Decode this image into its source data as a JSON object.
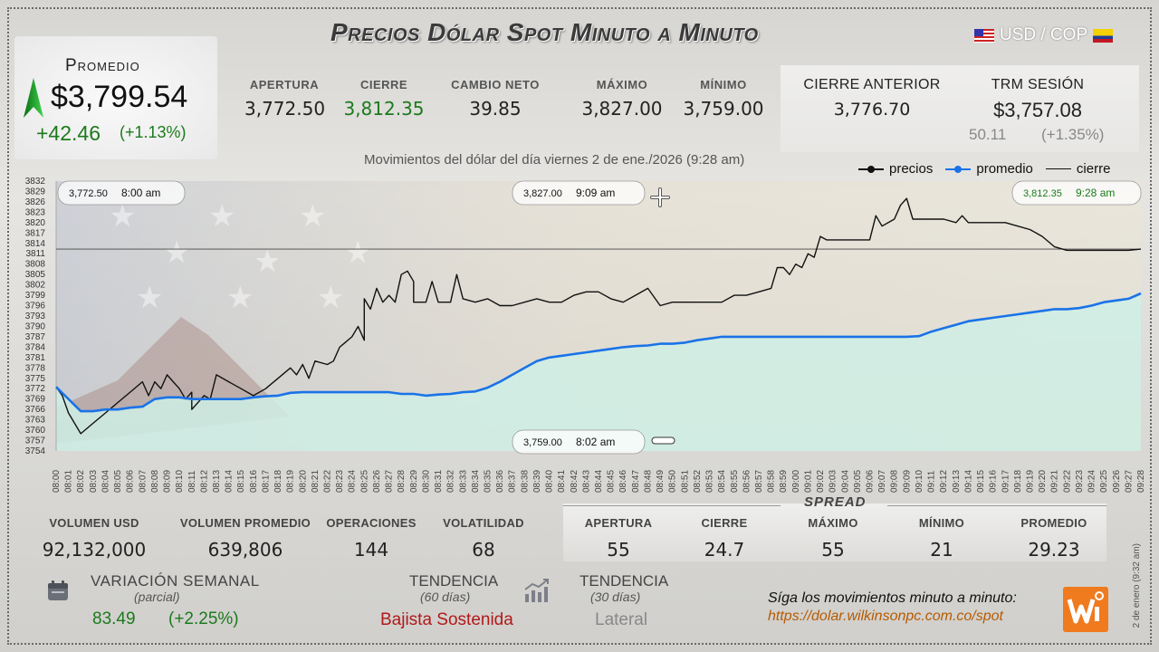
{
  "header": {
    "title": "Precios Dólar Spot Minuto a Minuto",
    "currency_pair": "USD / COP"
  },
  "average": {
    "label": "Promedio",
    "value": "$3,799.54",
    "change": "+42.46",
    "change_pct": "(+1.13%)"
  },
  "stats": {
    "apertura_label": "APERTURA",
    "apertura": "3,772.50",
    "cierre_label": "CIERRE",
    "cierre": "3,812.35",
    "cambio_label": "CAMBIO NETO",
    "cambio": "39.85",
    "maximo_label": "MÁXIMO",
    "maximo": "3,827.00",
    "minimo_label": "MÍNIMO",
    "minimo": "3,759.00"
  },
  "previous": {
    "cierre_anterior_label": "CIERRE ANTERIOR",
    "cierre_anterior": "3,776.70",
    "trm_label": "TRM SESIÓN",
    "trm": "$3,757.08",
    "trm_change": "50.11",
    "trm_pct": "(+1.35%)"
  },
  "chart_subtitle": "Movimientos del dólar del día viernes 2 de ene./2026 (9:28 am)",
  "legend": {
    "precios": "precios",
    "promedio": "promedio",
    "cierre": "cierre"
  },
  "colors": {
    "precios": "#111111",
    "promedio": "#1a73e8",
    "cierre": "#444444",
    "fill": "#cfeee5",
    "green": "#1c7a1c",
    "red": "#b11a1a"
  },
  "chart_data": {
    "type": "line",
    "ylim": [
      3754,
      3832
    ],
    "yticks": [
      3832,
      3829,
      3826,
      3823,
      3820,
      3817,
      3814,
      3811,
      3808,
      3805,
      3802,
      3799,
      3796,
      3793,
      3790,
      3787,
      3784,
      3781,
      3778,
      3775,
      3772,
      3769,
      3766,
      3763,
      3760,
      3757,
      3754
    ],
    "x_start_minute": 0,
    "x_end_minute": 88,
    "xticks": [
      "08:00",
      "08:01",
      "08:02",
      "08:03",
      "08:04",
      "08:05",
      "08:06",
      "08:07",
      "08:08",
      "08:09",
      "08:10",
      "08:11",
      "08:12",
      "08:13",
      "08:14",
      "08:15",
      "08:16",
      "08:17",
      "08:18",
      "08:19",
      "08:20",
      "08:21",
      "08:22",
      "08:23",
      "08:24",
      "08:25",
      "08:26",
      "08:27",
      "08:28",
      "08:29",
      "08:30",
      "08:31",
      "08:32",
      "08:33",
      "08:34",
      "08:35",
      "08:36",
      "08:37",
      "08:38",
      "08:39",
      "08:40",
      "08:41",
      "08:42",
      "08:43",
      "08:44",
      "08:45",
      "08:46",
      "08:47",
      "08:48",
      "08:49",
      "08:50",
      "08:51",
      "08:52",
      "08:53",
      "08:54",
      "08:55",
      "08:56",
      "08:57",
      "08:58",
      "08:59",
      "09:00",
      "09:01",
      "09:02",
      "09:03",
      "09:04",
      "09:05",
      "09:06",
      "09:07",
      "09:08",
      "09:09",
      "09:10",
      "09:11",
      "09:12",
      "09:13",
      "09:14",
      "09:15",
      "09:16",
      "09:17",
      "09:18",
      "09:19",
      "09:20",
      "09:21",
      "09:22",
      "09:23",
      "09:24",
      "09:25",
      "09:26",
      "09:27",
      "09:28"
    ],
    "cierre_line": 3812.35,
    "series": [
      {
        "name": "precios",
        "points": [
          [
            0,
            3772.5
          ],
          [
            0.5,
            3770
          ],
          [
            1,
            3765
          ],
          [
            2,
            3759
          ],
          [
            3,
            3762
          ],
          [
            4,
            3765
          ],
          [
            5,
            3768
          ],
          [
            6,
            3771
          ],
          [
            7,
            3774
          ],
          [
            7.5,
            3770
          ],
          [
            8,
            3774
          ],
          [
            8.5,
            3772
          ],
          [
            9,
            3776
          ],
          [
            9.5,
            3774
          ],
          [
            10,
            3772
          ],
          [
            10.5,
            3769
          ],
          [
            11,
            3771
          ],
          [
            11,
            3766
          ],
          [
            12,
            3770
          ],
          [
            12.5,
            3769
          ],
          [
            13,
            3776
          ],
          [
            14,
            3774
          ],
          [
            15,
            3772
          ],
          [
            16,
            3770
          ],
          [
            17,
            3772
          ],
          [
            18,
            3775
          ],
          [
            19,
            3778
          ],
          [
            19.5,
            3776
          ],
          [
            20,
            3779
          ],
          [
            20.5,
            3775
          ],
          [
            21,
            3780
          ],
          [
            22,
            3779
          ],
          [
            22.5,
            3780
          ],
          [
            23,
            3784
          ],
          [
            24,
            3787
          ],
          [
            24.5,
            3790
          ],
          [
            25,
            3786
          ],
          [
            25,
            3798
          ],
          [
            25.5,
            3795
          ],
          [
            26,
            3801
          ],
          [
            26.5,
            3797
          ],
          [
            27,
            3799
          ],
          [
            27.5,
            3797
          ],
          [
            28,
            3805
          ],
          [
            28.5,
            3806
          ],
          [
            29,
            3803
          ],
          [
            29,
            3797
          ],
          [
            30,
            3797
          ],
          [
            30.5,
            3803
          ],
          [
            31,
            3797
          ],
          [
            32,
            3797
          ],
          [
            32.5,
            3805
          ],
          [
            33,
            3798
          ],
          [
            34,
            3797
          ],
          [
            35,
            3798
          ],
          [
            36,
            3796
          ],
          [
            37,
            3796
          ],
          [
            38,
            3797
          ],
          [
            39,
            3798
          ],
          [
            40,
            3797
          ],
          [
            41,
            3797
          ],
          [
            42,
            3799
          ],
          [
            43,
            3800
          ],
          [
            44,
            3800
          ],
          [
            45,
            3798
          ],
          [
            46,
            3797
          ],
          [
            47,
            3799
          ],
          [
            48,
            3801
          ],
          [
            49,
            3796
          ],
          [
            50,
            3797
          ],
          [
            51,
            3797
          ],
          [
            52,
            3797
          ],
          [
            53,
            3797
          ],
          [
            54,
            3797
          ],
          [
            55,
            3799
          ],
          [
            56,
            3799
          ],
          [
            57,
            3800
          ],
          [
            58,
            3801
          ],
          [
            58.5,
            3807
          ],
          [
            59,
            3807
          ],
          [
            59.5,
            3805
          ],
          [
            60,
            3808
          ],
          [
            60.5,
            3807
          ],
          [
            61,
            3811
          ],
          [
            61.5,
            3810
          ],
          [
            62,
            3816
          ],
          [
            62.5,
            3815
          ],
          [
            63,
            3815
          ],
          [
            64,
            3815
          ],
          [
            65,
            3815
          ],
          [
            66,
            3815
          ],
          [
            66.5,
            3822
          ],
          [
            67,
            3819
          ],
          [
            68,
            3821
          ],
          [
            68.5,
            3825
          ],
          [
            69,
            3827
          ],
          [
            69.5,
            3821
          ],
          [
            70,
            3821
          ],
          [
            71,
            3821
          ],
          [
            72,
            3821
          ],
          [
            73,
            3820
          ],
          [
            73.5,
            3822
          ],
          [
            74,
            3820
          ],
          [
            75,
            3820
          ],
          [
            76,
            3820
          ],
          [
            77,
            3820
          ],
          [
            78,
            3819
          ],
          [
            79,
            3818
          ],
          [
            80,
            3816
          ],
          [
            81,
            3813
          ],
          [
            82,
            3812
          ],
          [
            83,
            3812
          ],
          [
            84,
            3812
          ],
          [
            85,
            3812
          ],
          [
            86,
            3812
          ],
          [
            87,
            3812
          ],
          [
            88,
            3812.35
          ]
        ]
      },
      {
        "name": "promedio",
        "points": [
          [
            0,
            3772.5
          ],
          [
            1,
            3769
          ],
          [
            2,
            3765.5
          ],
          [
            3,
            3765.5
          ],
          [
            4,
            3766
          ],
          [
            5,
            3766
          ],
          [
            6,
            3766.5
          ],
          [
            7,
            3766.8
          ],
          [
            8,
            3769
          ],
          [
            9,
            3769.5
          ],
          [
            10,
            3769.5
          ],
          [
            11,
            3769
          ],
          [
            12,
            3769
          ],
          [
            13,
            3769
          ],
          [
            14,
            3769
          ],
          [
            15,
            3769
          ],
          [
            16,
            3769.5
          ],
          [
            17,
            3769.8
          ],
          [
            18,
            3770
          ],
          [
            19,
            3770.8
          ],
          [
            20,
            3771
          ],
          [
            21,
            3771
          ],
          [
            22,
            3771
          ],
          [
            23,
            3771
          ],
          [
            24,
            3771
          ],
          [
            25,
            3771
          ],
          [
            26,
            3771
          ],
          [
            27,
            3771
          ],
          [
            28,
            3770.5
          ],
          [
            29,
            3770.5
          ],
          [
            30,
            3770
          ],
          [
            31,
            3770.3
          ],
          [
            32,
            3770.5
          ],
          [
            33,
            3771
          ],
          [
            34,
            3771.2
          ],
          [
            35,
            3772.3
          ],
          [
            36,
            3774
          ],
          [
            37,
            3776
          ],
          [
            38,
            3778
          ],
          [
            39,
            3780
          ],
          [
            40,
            3781
          ],
          [
            41,
            3781.5
          ],
          [
            42,
            3782
          ],
          [
            43,
            3782.5
          ],
          [
            44,
            3783
          ],
          [
            45,
            3783.5
          ],
          [
            46,
            3784
          ],
          [
            47,
            3784.3
          ],
          [
            48,
            3784.5
          ],
          [
            49,
            3785
          ],
          [
            50,
            3785
          ],
          [
            51,
            3785.3
          ],
          [
            52,
            3786
          ],
          [
            53,
            3786.5
          ],
          [
            54,
            3787
          ],
          [
            55,
            3787
          ],
          [
            56,
            3787
          ],
          [
            57,
            3787
          ],
          [
            58,
            3787
          ],
          [
            59,
            3787
          ],
          [
            60,
            3787
          ],
          [
            61,
            3787
          ],
          [
            62,
            3787
          ],
          [
            63,
            3787
          ],
          [
            64,
            3787
          ],
          [
            65,
            3787
          ],
          [
            66,
            3787
          ],
          [
            67,
            3787
          ],
          [
            68,
            3787
          ],
          [
            69,
            3787
          ],
          [
            70,
            3787.2
          ],
          [
            71,
            3788.5
          ],
          [
            72,
            3789.5
          ],
          [
            73,
            3790.5
          ],
          [
            74,
            3791.5
          ],
          [
            75,
            3792
          ],
          [
            76,
            3792.5
          ],
          [
            77,
            3793
          ],
          [
            78,
            3793.5
          ],
          [
            79,
            3794
          ],
          [
            80,
            3794.5
          ],
          [
            81,
            3795
          ],
          [
            82,
            3795
          ],
          [
            83,
            3795.3
          ],
          [
            84,
            3796
          ],
          [
            85,
            3797
          ],
          [
            86,
            3797.5
          ],
          [
            87,
            3798
          ],
          [
            88,
            3799.54
          ]
        ]
      }
    ],
    "callouts": {
      "open": {
        "price": "3,772.50",
        "time": "8:00 am"
      },
      "max": {
        "price": "3,827.00",
        "time": "9:09 am"
      },
      "close": {
        "price": "3,812.35",
        "time": "9:28 am"
      },
      "min": {
        "price": "3,759.00",
        "time": "8:02 am"
      }
    }
  },
  "volume": {
    "vol_usd_label": "VOLUMEN USD",
    "vol_usd": "92,132,000",
    "vol_prom_label": "VOLUMEN PROMEDIO",
    "vol_prom": "639,806",
    "ops_label": "OPERACIONES",
    "ops": "144",
    "volat_label": "VOLATILIDAD",
    "volat": "68"
  },
  "spread": {
    "title": "SPREAD",
    "apertura_label": "APERTURA",
    "apertura": "55",
    "cierre_label": "CIERRE",
    "cierre": "24.7",
    "maximo_label": "MÁXIMO",
    "maximo": "55",
    "minimo_label": "MÍNIMO",
    "minimo": "21",
    "promedio_label": "PROMEDIO",
    "promedio": "29.23"
  },
  "weekly": {
    "label": "VARIACIÓN SEMANAL",
    "sub": "(parcial)",
    "value": "83.49",
    "pct": "(+2.25%)"
  },
  "trend60": {
    "label": "TENDENCIA",
    "sub": "(60 días)",
    "value": "Bajista Sostenida"
  },
  "trend30": {
    "label": "TENDENCIA",
    "sub": "(30 días)",
    "value": "Lateral"
  },
  "footer": {
    "follow": "Síga los movimientos minuto a minuto:",
    "url": "https://dolar.wilkinsonpc.com.co/spot",
    "side_date": "2 de enero (9:32 am)"
  }
}
